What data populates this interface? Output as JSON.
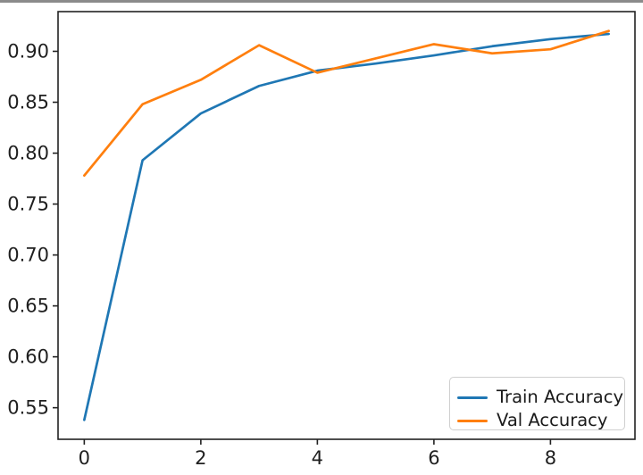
{
  "window": {
    "top_edge_color": "#8b8b8b",
    "background_color": "#ffffff"
  },
  "chart_data": {
    "type": "line",
    "title": "",
    "xlabel": "",
    "ylabel": "",
    "x": [
      0,
      1,
      2,
      3,
      4,
      5,
      6,
      7,
      8,
      9
    ],
    "series": [
      {
        "name": "Train Accuracy",
        "color": "#1f77b4",
        "values": [
          0.538,
          0.793,
          0.839,
          0.866,
          0.881,
          0.888,
          0.896,
          0.905,
          0.912,
          0.917
        ]
      },
      {
        "name": "Val Accuracy",
        "color": "#ff7f0e",
        "values": [
          0.778,
          0.848,
          0.872,
          0.906,
          0.879,
          0.893,
          0.907,
          0.898,
          0.902,
          0.92
        ]
      }
    ],
    "xlim": [
      -0.45,
      9.45
    ],
    "ylim": [
      0.519,
      0.939
    ],
    "x_ticks": [
      0,
      2,
      4,
      6,
      8
    ],
    "y_ticks": [
      0.55,
      0.6,
      0.65,
      0.7,
      0.75,
      0.8,
      0.85,
      0.9
    ],
    "grid": false,
    "legend_position": "lower right",
    "axis_color": "#222222",
    "tick_label_color": "#1f1f1f",
    "line_width": 2.7
  }
}
